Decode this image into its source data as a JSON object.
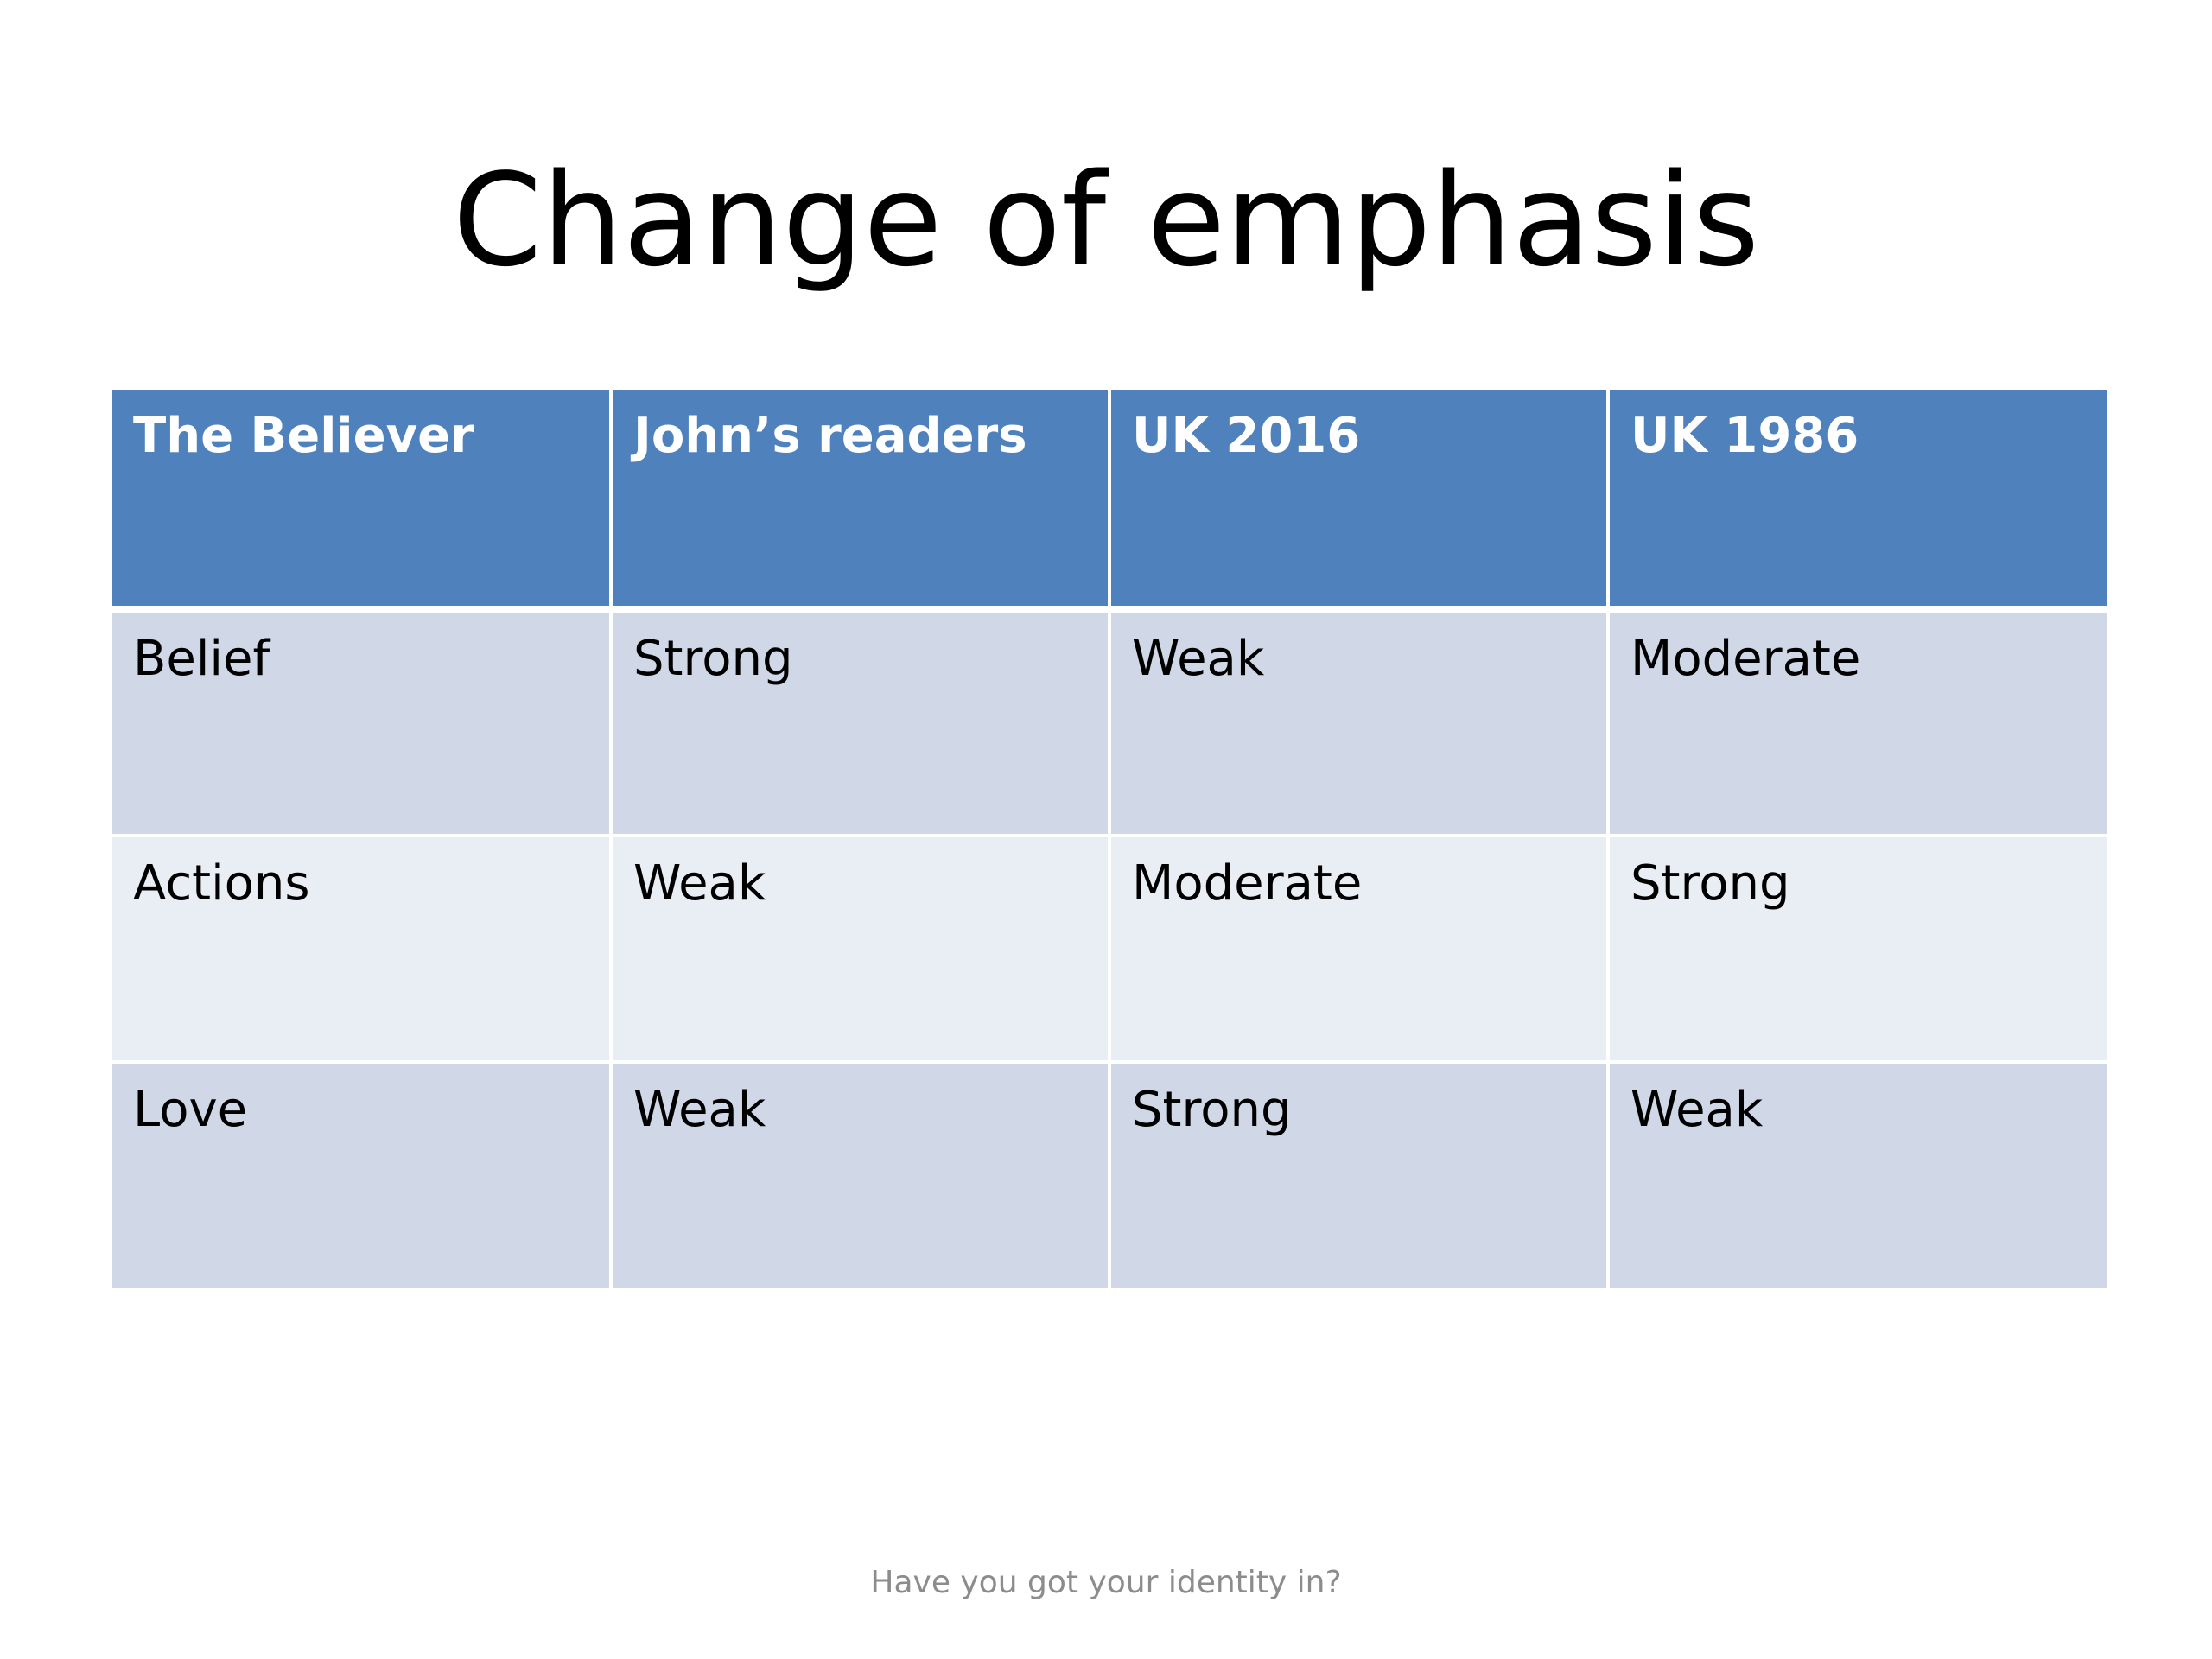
{
  "slide": {
    "title": "Change of emphasis",
    "footer": "Have you got your identity in?"
  },
  "table": {
    "headers": [
      "The Believer",
      "John’s readers",
      "UK 2016",
      "UK 1986"
    ],
    "rows": [
      [
        "Belief",
        "Strong",
        "Weak",
        "Moderate"
      ],
      [
        "Actions",
        "Weak",
        "Moderate",
        "Strong"
      ],
      [
        "Love",
        "Weak",
        "Strong",
        "Weak"
      ]
    ]
  },
  "colors": {
    "header_fill": "#4f81bd",
    "row_fill_dark": "#d0d8e8",
    "row_fill_light": "#e9edf4",
    "footer_text": "#8c8c8c"
  }
}
